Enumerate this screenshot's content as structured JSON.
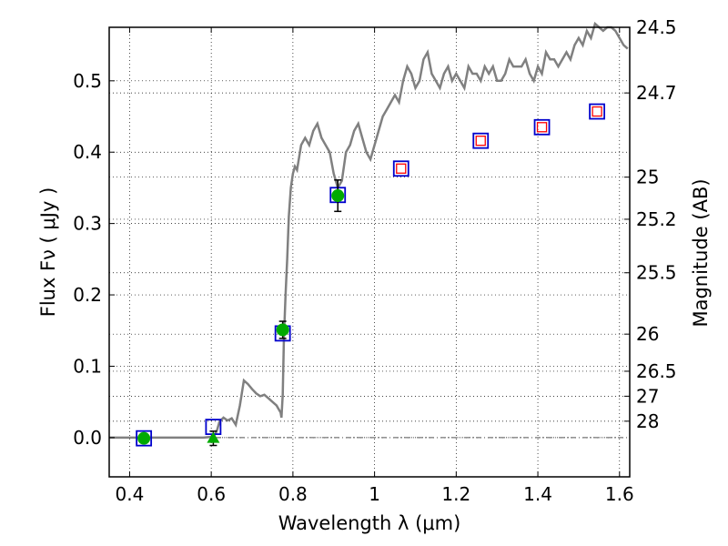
{
  "chart_data": {
    "type": "scatter",
    "xlabel": "Wavelength  λ (μm)",
    "ylabel": "Flux  Fν  ( μJy )",
    "y2label": "Magnitude (AB)",
    "xlim": [
      0.35,
      1.625
    ],
    "ylim": [
      -0.055,
      0.575
    ],
    "xticks": [
      0.4,
      0.6,
      0.8,
      1.0,
      1.2,
      1.4,
      1.6
    ],
    "xtick_labels": [
      "0.4",
      "0.6",
      "0.8",
      "1",
      "1.2",
      "1.4",
      "1.6"
    ],
    "yticks": [
      0.0,
      0.1,
      0.2,
      0.3,
      0.4,
      0.5
    ],
    "ytick_labels": [
      "0.0",
      "0.1",
      "0.2",
      "0.3",
      "0.4",
      "0.5"
    ],
    "right_ticks": [
      {
        "label": "24.5",
        "flux": 0.575
      },
      {
        "label": "24.7",
        "flux": 0.483
      },
      {
        "label": "25",
        "flux": 0.365
      },
      {
        "label": "25.2",
        "flux": 0.306
      },
      {
        "label": "25.5",
        "flux": 0.231
      },
      {
        "label": "26",
        "flux": 0.145
      },
      {
        "label": "26.5",
        "flux": 0.093
      },
      {
        "label": "27",
        "flux": 0.058
      },
      {
        "label": "28",
        "flux": 0.023
      }
    ],
    "grid": true,
    "series": [
      {
        "kind": "line",
        "color": "#808080",
        "x": [
          0.35,
          0.5,
          0.58,
          0.6,
          0.61,
          0.615,
          0.62,
          0.63,
          0.64,
          0.65,
          0.66,
          0.67,
          0.68,
          0.69,
          0.7,
          0.71,
          0.72,
          0.73,
          0.74,
          0.75,
          0.76,
          0.77,
          0.772,
          0.775,
          0.778,
          0.782,
          0.786,
          0.79,
          0.795,
          0.8,
          0.805,
          0.81,
          0.82,
          0.83,
          0.84,
          0.85,
          0.86,
          0.87,
          0.88,
          0.89,
          0.9,
          0.91,
          0.92,
          0.93,
          0.94,
          0.95,
          0.96,
          0.97,
          0.98,
          0.99,
          1.0,
          1.01,
          1.02,
          1.03,
          1.04,
          1.05,
          1.06,
          1.07,
          1.08,
          1.09,
          1.1,
          1.11,
          1.12,
          1.13,
          1.14,
          1.15,
          1.16,
          1.17,
          1.18,
          1.19,
          1.2,
          1.21,
          1.22,
          1.23,
          1.24,
          1.25,
          1.26,
          1.27,
          1.28,
          1.29,
          1.3,
          1.31,
          1.32,
          1.33,
          1.34,
          1.35,
          1.36,
          1.37,
          1.38,
          1.39,
          1.4,
          1.41,
          1.42,
          1.43,
          1.44,
          1.45,
          1.46,
          1.47,
          1.48,
          1.49,
          1.5,
          1.51,
          1.52,
          1.53,
          1.54,
          1.55,
          1.56,
          1.57,
          1.58,
          1.59,
          1.6,
          1.61,
          1.62
        ],
        "y": [
          0.0,
          0.0,
          0.0,
          0.001,
          0.005,
          0.012,
          0.022,
          0.028,
          0.024,
          0.027,
          0.018,
          0.045,
          0.08,
          0.075,
          0.068,
          0.062,
          0.058,
          0.06,
          0.055,
          0.05,
          0.045,
          0.035,
          0.028,
          0.06,
          0.14,
          0.2,
          0.25,
          0.31,
          0.35,
          0.37,
          0.38,
          0.375,
          0.41,
          0.42,
          0.41,
          0.43,
          0.44,
          0.42,
          0.41,
          0.4,
          0.37,
          0.35,
          0.36,
          0.4,
          0.41,
          0.43,
          0.44,
          0.42,
          0.4,
          0.39,
          0.41,
          0.43,
          0.45,
          0.46,
          0.47,
          0.48,
          0.47,
          0.5,
          0.52,
          0.51,
          0.49,
          0.5,
          0.53,
          0.54,
          0.51,
          0.5,
          0.49,
          0.51,
          0.52,
          0.5,
          0.51,
          0.5,
          0.49,
          0.52,
          0.51,
          0.51,
          0.5,
          0.52,
          0.51,
          0.52,
          0.5,
          0.5,
          0.51,
          0.53,
          0.52,
          0.52,
          0.52,
          0.53,
          0.51,
          0.5,
          0.52,
          0.51,
          0.54,
          0.53,
          0.53,
          0.52,
          0.53,
          0.54,
          0.53,
          0.55,
          0.56,
          0.55,
          0.57,
          0.56,
          0.58,
          0.575,
          0.57,
          0.575,
          0.575,
          0.57,
          0.56,
          0.55,
          0.545
        ]
      },
      {
        "kind": "open-square",
        "color": "#0000cc",
        "x": [
          0.435,
          0.605,
          0.775,
          0.91,
          1.065,
          1.26,
          1.41,
          1.545
        ],
        "y": [
          -0.001,
          0.015,
          0.146,
          0.34,
          0.377,
          0.416,
          0.435,
          0.457
        ]
      },
      {
        "kind": "small-open-square",
        "color": "#ff0000",
        "x": [
          1.065,
          1.26,
          1.41,
          1.545
        ],
        "y": [
          0.377,
          0.416,
          0.435,
          0.457
        ]
      },
      {
        "kind": "filled-circle",
        "color": "#00aa00",
        "x": [
          0.435,
          0.775,
          0.91
        ],
        "y": [
          -0.001,
          0.151,
          0.339
        ],
        "yerr": [
          0.0,
          0.012,
          0.022
        ]
      },
      {
        "kind": "triangle",
        "color": "#00aa00",
        "x": [
          0.605
        ],
        "y": [
          -0.001
        ],
        "yerr": [
          0.01
        ]
      }
    ],
    "hline": {
      "y": 0.0,
      "style": "dashdot",
      "color": "#555555"
    }
  }
}
